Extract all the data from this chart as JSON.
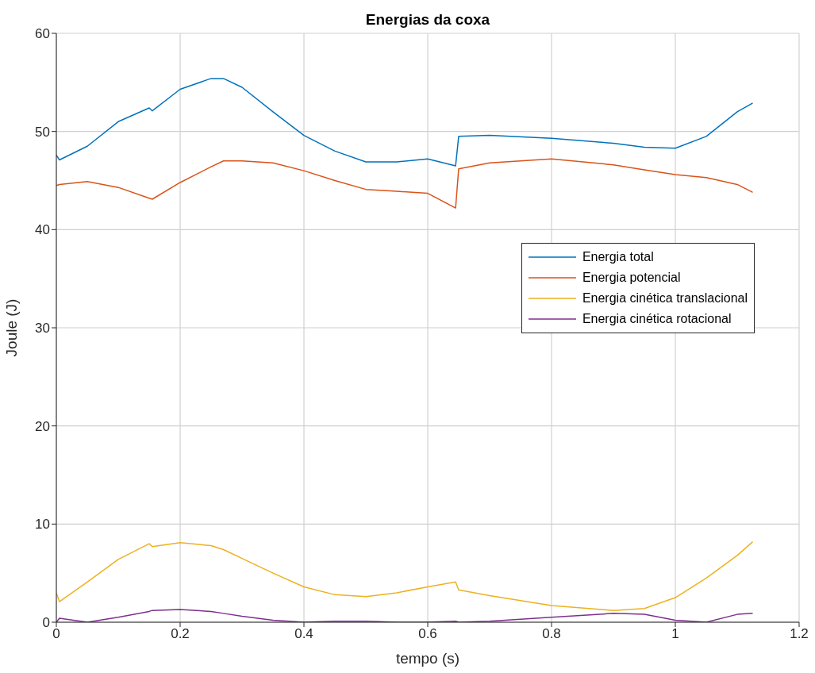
{
  "chart_data": {
    "type": "line",
    "title": "Energias da coxa",
    "xlabel": "tempo (s)",
    "ylabel": "Joule (J)",
    "x": [
      0,
      0.005,
      0.05,
      0.1,
      0.15,
      0.155,
      0.2,
      0.25,
      0.27,
      0.3,
      0.35,
      0.4,
      0.45,
      0.5,
      0.55,
      0.6,
      0.645,
      0.65,
      0.7,
      0.8,
      0.9,
      0.95,
      1.0,
      1.05,
      1.1,
      1.125
    ],
    "series": [
      {
        "name": "Energia total",
        "color": "#0072bd",
        "values": [
          47.6,
          47.1,
          48.5,
          51,
          52.4,
          52.1,
          54.3,
          55.4,
          55.4,
          54.5,
          52,
          49.6,
          48,
          46.9,
          46.9,
          47.2,
          46.5,
          49.5,
          49.6,
          49.3,
          48.8,
          48.4,
          48.3,
          49.5,
          52,
          52.9
        ]
      },
      {
        "name": "Energia potencial",
        "color": "#d95319",
        "values": [
          44.5,
          44.6,
          44.9,
          44.3,
          43.2,
          43.1,
          44.8,
          46.4,
          47,
          47,
          46.8,
          46,
          45,
          44.1,
          43.9,
          43.7,
          42.2,
          46.2,
          46.8,
          47.2,
          46.6,
          46.1,
          45.6,
          45.3,
          44.6,
          43.8
        ]
      },
      {
        "name": "Energia cinética translacional",
        "color": "#edb120",
        "values": [
          3,
          2.1,
          4.1,
          6.4,
          8,
          7.7,
          8.1,
          7.8,
          7.4,
          6.5,
          5,
          3.6,
          2.8,
          2.6,
          3,
          3.6,
          4.1,
          3.3,
          2.7,
          1.7,
          1.2,
          1.4,
          2.5,
          4.5,
          6.8,
          8.2
        ]
      },
      {
        "name": "Energia cinética rotacional",
        "color": "#7e2f8e",
        "values": [
          0,
          0.4,
          0,
          0.5,
          1.1,
          1.2,
          1.3,
          1.1,
          0.9,
          0.6,
          0.2,
          0,
          0.1,
          0.1,
          0,
          0,
          0.1,
          0,
          0.1,
          0.5,
          0.9,
          0.8,
          0.2,
          0,
          0.8,
          0.9
        ]
      }
    ],
    "xlim": [
      0,
      1.2
    ],
    "xticks": [
      0,
      0.2,
      0.4,
      0.6,
      0.8,
      1,
      1.2
    ],
    "ylim": [
      0,
      60
    ],
    "yticks": [
      0,
      10,
      20,
      30,
      40,
      50,
      60
    ],
    "grid": true,
    "legend": "top right",
    "marker": "none",
    "line_style": "solid"
  }
}
